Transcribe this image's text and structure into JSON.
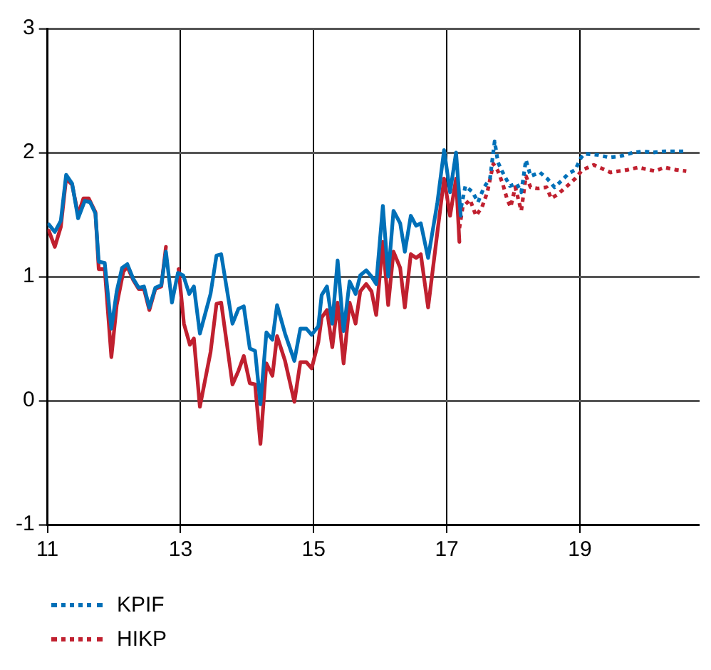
{
  "chart_data": {
    "type": "line",
    "xlim": [
      11,
      20.8
    ],
    "xticks": [
      11,
      13,
      15,
      17,
      19
    ],
    "ylim": [
      -1,
      3
    ],
    "yticks": [
      -1,
      0,
      1,
      2,
      3
    ],
    "grid": true,
    "legend": "bottom",
    "marker": "none",
    "series": [
      {
        "color": "#0070b8",
        "line_style": "solid",
        "x": [
          11.02,
          11.11,
          11.2,
          11.28,
          11.37,
          11.46,
          11.56,
          11.64,
          11.72,
          11.77,
          11.86,
          11.96,
          12.04,
          12.12,
          12.2,
          12.29,
          12.37,
          12.45,
          12.53,
          12.62,
          12.71,
          12.78,
          12.87,
          12.96,
          13.04,
          13.13,
          13.2,
          13.29,
          13.45,
          13.54,
          13.61,
          13.78,
          13.87,
          13.95,
          14.04,
          14.12,
          14.2,
          14.29,
          14.38,
          14.45,
          14.57,
          14.71,
          14.8,
          14.89,
          14.97,
          15.07,
          15.12,
          15.2,
          15.28,
          15.36,
          15.45,
          15.54,
          15.63,
          15.7,
          15.79,
          15.87,
          15.94,
          16.04,
          16.12,
          16.2,
          16.3,
          16.37,
          16.46,
          16.54,
          16.61,
          16.72,
          16.86,
          16.96,
          17.05,
          17.14,
          17.21
        ],
        "values": [
          1.42,
          1.36,
          1.45,
          1.82,
          1.75,
          1.47,
          1.61,
          1.6,
          1.51,
          1.12,
          1.11,
          0.58,
          0.88,
          1.07,
          1.1,
          0.98,
          0.91,
          0.92,
          0.75,
          0.91,
          0.93,
          1.2,
          0.79,
          1.03,
          1.01,
          0.86,
          0.92,
          0.54,
          0.86,
          1.17,
          1.18,
          0.62,
          0.74,
          0.76,
          0.42,
          0.4,
          -0.03,
          0.55,
          0.49,
          0.77,
          0.54,
          0.32,
          0.58,
          0.58,
          0.53,
          0.6,
          0.85,
          0.92,
          0.62,
          1.13,
          0.56,
          0.96,
          0.86,
          1.01,
          1.05,
          1.0,
          0.94,
          1.57,
          1.0,
          1.53,
          1.43,
          1.2,
          1.49,
          1.41,
          1.43,
          1.15,
          1.6,
          2.02,
          1.68,
          2.0,
          1.49
        ]
      },
      {
        "color": "#c0202f",
        "line_style": "solid",
        "x": [
          11.02,
          11.11,
          11.2,
          11.28,
          11.37,
          11.46,
          11.54,
          11.62,
          11.72,
          11.77,
          11.86,
          11.96,
          12.04,
          12.14,
          12.2,
          12.29,
          12.37,
          12.45,
          12.53,
          12.62,
          12.71,
          12.78,
          12.87,
          12.97,
          13.05,
          13.14,
          13.2,
          13.29,
          13.45,
          13.54,
          13.61,
          13.78,
          13.87,
          13.95,
          14.04,
          14.12,
          14.2,
          14.29,
          14.38,
          14.45,
          14.57,
          14.71,
          14.8,
          14.89,
          14.97,
          15.07,
          15.12,
          15.2,
          15.28,
          15.36,
          15.45,
          15.54,
          15.63,
          15.7,
          15.79,
          15.87,
          15.94,
          16.04,
          16.12,
          16.2,
          16.3,
          16.37,
          16.46,
          16.54,
          16.61,
          16.72,
          16.86,
          16.96,
          17.05,
          17.14,
          17.19
        ],
        "values": [
          1.37,
          1.24,
          1.4,
          1.79,
          1.74,
          1.5,
          1.63,
          1.63,
          1.52,
          1.06,
          1.06,
          0.35,
          0.77,
          1.04,
          1.08,
          0.97,
          0.9,
          0.9,
          0.73,
          0.9,
          0.92,
          1.24,
          null,
          1.06,
          0.62,
          0.45,
          0.5,
          -0.05,
          0.39,
          0.78,
          0.79,
          0.13,
          0.24,
          0.36,
          0.14,
          0.13,
          -0.35,
          0.3,
          0.2,
          0.52,
          0.32,
          -0.01,
          0.31,
          0.31,
          0.26,
          0.47,
          0.67,
          0.73,
          0.43,
          0.79,
          0.3,
          0.79,
          0.62,
          0.88,
          0.94,
          0.88,
          0.69,
          1.28,
          0.77,
          1.2,
          1.07,
          0.75,
          1.18,
          1.15,
          1.18,
          0.75,
          1.36,
          1.79,
          1.49,
          1.79,
          1.28
        ]
      },
      {
        "name": "KPIF",
        "color": "#0070b8",
        "line_style": "dotted",
        "x": [
          17.19,
          17.28,
          17.39,
          17.47,
          17.56,
          17.65,
          17.72,
          17.77,
          17.84,
          17.95,
          18.05,
          18.12,
          18.19,
          18.26,
          18.4,
          18.51,
          18.62,
          18.72,
          18.83,
          18.93,
          19.02,
          19.07,
          19.28,
          19.44,
          19.6,
          19.81,
          19.95,
          20.09,
          20.27,
          20.45,
          20.6
        ],
        "values": [
          1.49,
          1.73,
          1.68,
          1.6,
          1.72,
          1.79,
          2.09,
          1.92,
          1.84,
          1.73,
          1.75,
          1.68,
          1.94,
          1.81,
          1.84,
          1.79,
          1.72,
          1.77,
          1.83,
          1.86,
          1.96,
          1.99,
          1.98,
          1.96,
          1.97,
          2.0,
          2.01,
          2.0,
          2.01,
          2.01,
          2.01
        ]
      },
      {
        "name": "HIKP",
        "color": "#c0202f",
        "line_style": "dotted",
        "x": [
          17.19,
          17.24,
          17.35,
          17.44,
          17.53,
          17.61,
          17.7,
          17.77,
          17.84,
          17.91,
          17.96,
          18.03,
          18.12,
          18.19,
          18.26,
          18.37,
          18.5,
          18.57,
          18.66,
          18.79,
          18.93,
          19.04,
          19.21,
          19.46,
          19.71,
          19.88,
          20.13,
          20.27,
          20.45,
          20.6
        ],
        "values": [
          1.39,
          1.56,
          1.62,
          1.49,
          1.56,
          1.68,
          1.91,
          1.85,
          1.75,
          1.62,
          1.56,
          1.72,
          1.53,
          1.81,
          1.72,
          1.71,
          1.72,
          1.63,
          1.66,
          1.72,
          1.79,
          1.86,
          1.9,
          1.84,
          1.86,
          1.88,
          1.85,
          1.88,
          1.86,
          1.85
        ]
      }
    ]
  }
}
